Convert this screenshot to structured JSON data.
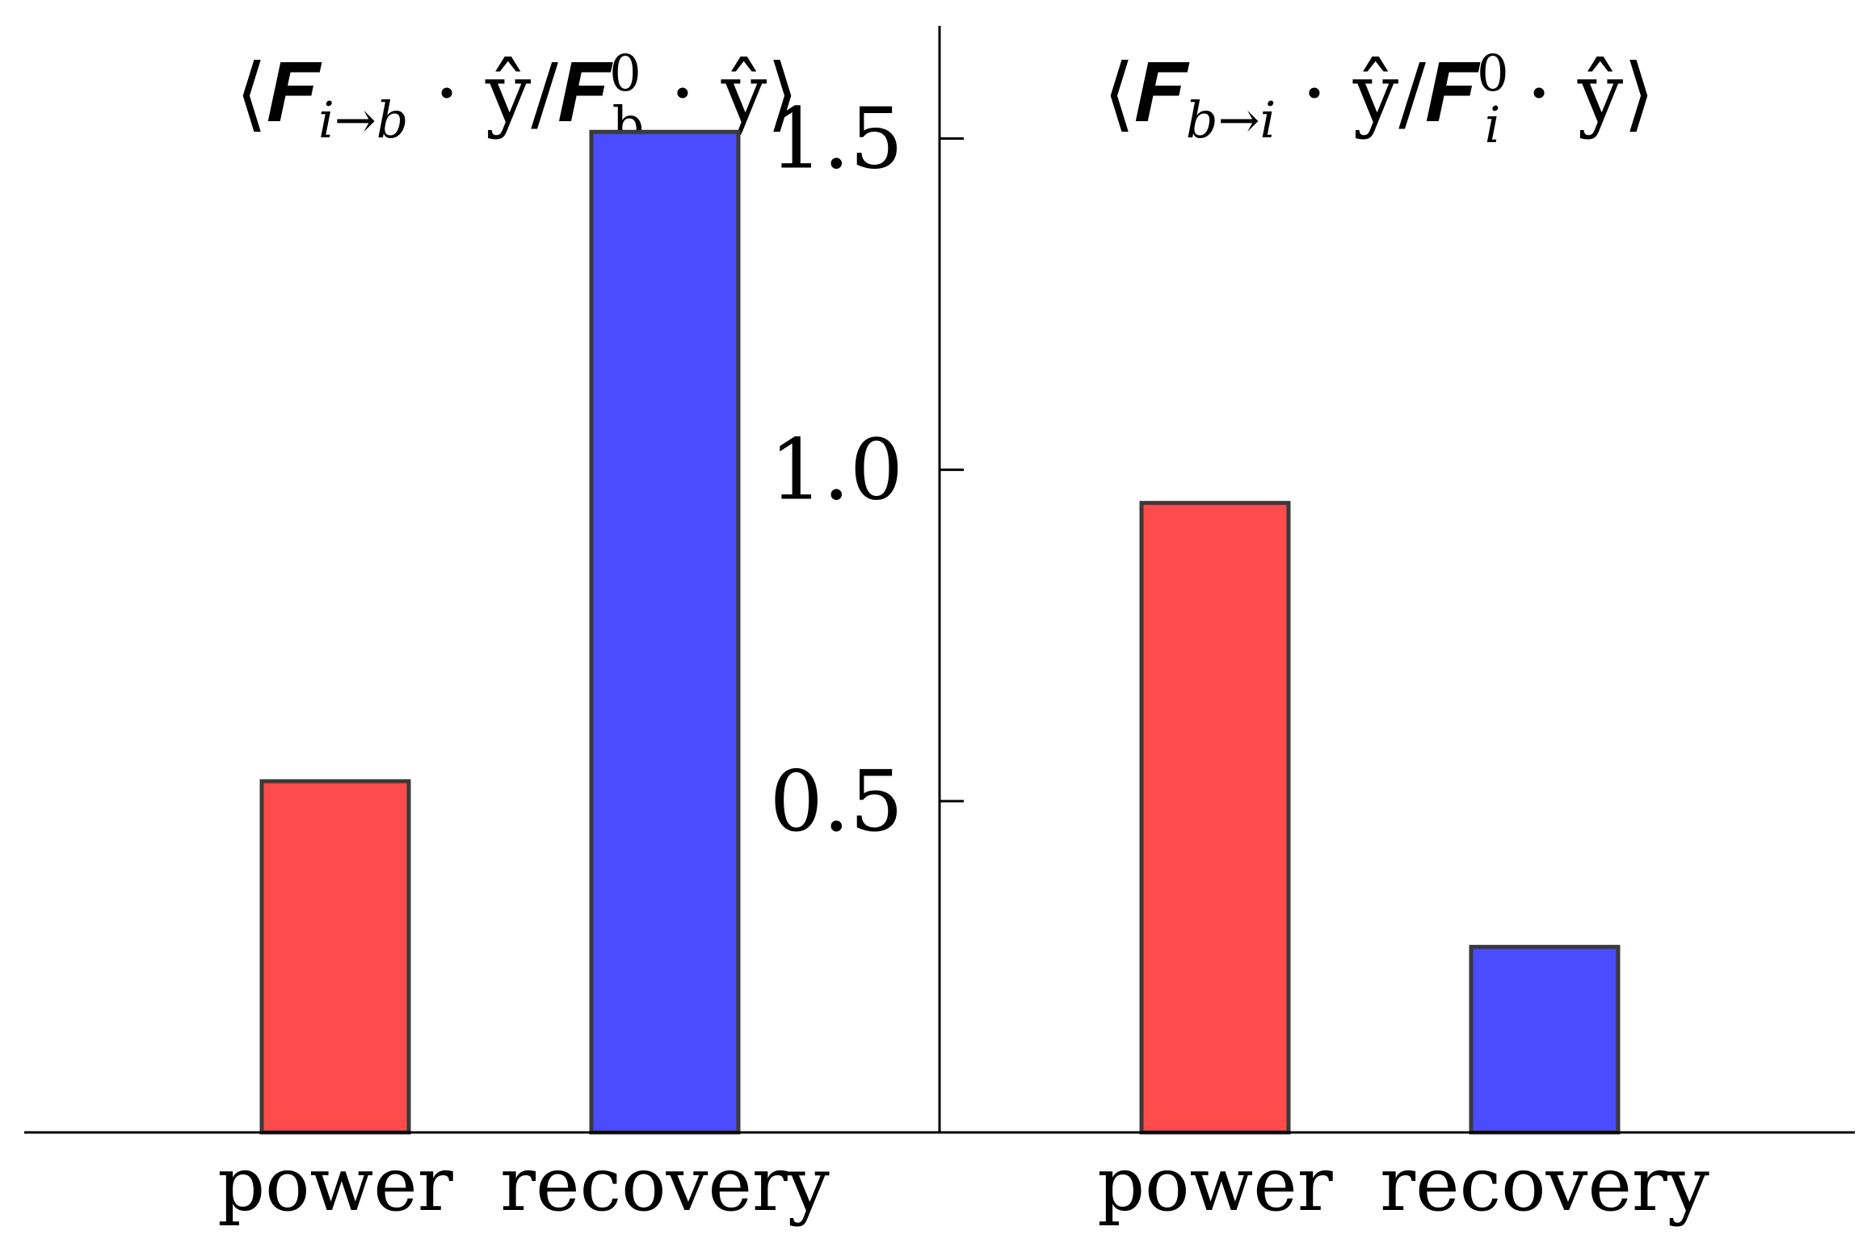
{
  "chart_data": [
    {
      "type": "bar",
      "title": "⟨𝑭ᵢ→b · ŷ/𝑭⁰b · ŷ⟩",
      "title_main": "⟨𝑭",
      "title_sub": "i→b",
      "title_mid": " · ŷ/𝑭",
      "title_sup2": "0",
      "title_sub2": "b",
      "title_end": " · ŷ⟩",
      "categories": [
        "power",
        "recovery"
      ],
      "values": [
        0.53,
        1.51
      ],
      "colors": [
        "#ff4b4b",
        "#4b4bff"
      ],
      "ylim": [
        0.0,
        1.67
      ],
      "yticks": [
        0.5,
        1.0,
        1.5
      ],
      "ytick_labels": [
        "0.5",
        "1.0",
        "1.5"
      ],
      "xlabel": "",
      "ylabel": ""
    },
    {
      "type": "bar",
      "title": "⟨𝑭b→i · ŷ/𝑭⁰ᵢ · ŷ⟩",
      "title_main": "⟨𝑭",
      "title_sub": "b→i",
      "title_mid": " · ŷ/𝑭",
      "title_sup2": "0",
      "title_sub2": "i",
      "title_end": " · ŷ⟩",
      "categories": [
        "power",
        "recovery"
      ],
      "values": [
        0.95,
        0.28
      ],
      "colors": [
        "#ff4b4b",
        "#4b4bff"
      ],
      "ylim": [
        0.0,
        1.67
      ],
      "xlabel": "",
      "ylabel": ""
    }
  ]
}
